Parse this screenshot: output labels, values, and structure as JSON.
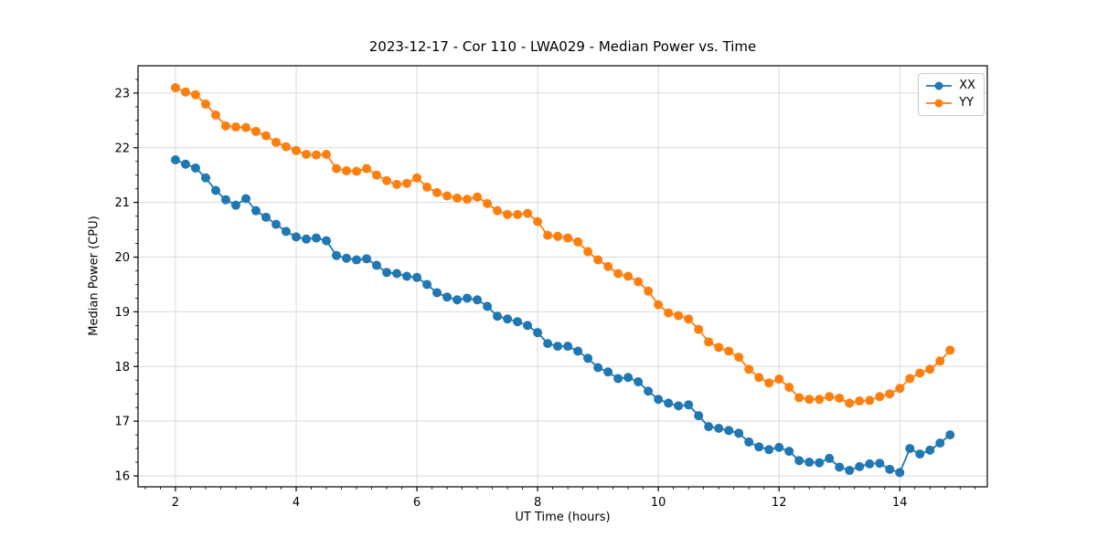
{
  "figure": {
    "title": "2023-12-17 - Cor 110 - LWA029 - Median Power vs. Time",
    "xlabel": "UT Time (hours)",
    "ylabel": "Median Power (CPU)"
  },
  "chart_data": {
    "type": "line",
    "title": "2023-12-17 - Cor 110 - LWA029 - Median Power vs. Time",
    "xlabel": "UT Time (hours)",
    "ylabel": "Median Power (CPU)",
    "xlim": [
      1.38,
      15.45
    ],
    "ylim": [
      15.8,
      23.5
    ],
    "x_ticks": [
      2,
      4,
      6,
      8,
      10,
      12,
      14
    ],
    "y_ticks": [
      16,
      17,
      18,
      19,
      20,
      21,
      22,
      23
    ],
    "x_minor_step": 0.25,
    "y_minor_step": 0.25,
    "grid": true,
    "grid_color": "#d9d9d9",
    "spine_color": "#000000",
    "legend_position": "upper right",
    "marker": "circle",
    "x": [
      2.0,
      2.167,
      2.333,
      2.5,
      2.667,
      2.833,
      3.0,
      3.167,
      3.333,
      3.5,
      3.667,
      3.833,
      4.0,
      4.167,
      4.333,
      4.5,
      4.667,
      4.833,
      5.0,
      5.167,
      5.333,
      5.5,
      5.667,
      5.833,
      6.0,
      6.167,
      6.333,
      6.5,
      6.667,
      6.833,
      7.0,
      7.167,
      7.333,
      7.5,
      7.667,
      7.833,
      8.0,
      8.167,
      8.333,
      8.5,
      8.667,
      8.833,
      9.0,
      9.167,
      9.333,
      9.5,
      9.667,
      9.833,
      10.0,
      10.167,
      10.333,
      10.5,
      10.667,
      10.833,
      11.0,
      11.167,
      11.333,
      11.5,
      11.667,
      11.833,
      12.0,
      12.167,
      12.333,
      12.5,
      12.667,
      12.833,
      13.0,
      13.167,
      13.333,
      13.5,
      13.667,
      13.833,
      14.0,
      14.167,
      14.333,
      14.5,
      14.667,
      14.833
    ],
    "series": [
      {
        "name": "XX",
        "color": "#1f77b4",
        "values": [
          21.78,
          21.7,
          21.63,
          21.45,
          21.22,
          21.05,
          20.95,
          21.07,
          20.85,
          20.73,
          20.6,
          20.47,
          20.37,
          20.33,
          20.35,
          20.3,
          20.03,
          19.98,
          19.95,
          19.97,
          19.85,
          19.72,
          19.7,
          19.65,
          19.63,
          19.5,
          19.35,
          19.27,
          19.22,
          19.25,
          19.22,
          19.1,
          18.92,
          18.87,
          18.82,
          18.75,
          18.62,
          18.42,
          18.37,
          18.37,
          18.28,
          18.15,
          17.98,
          17.9,
          17.78,
          17.8,
          17.72,
          17.55,
          17.4,
          17.33,
          17.28,
          17.3,
          17.1,
          16.9,
          16.87,
          16.83,
          16.78,
          16.62,
          16.53,
          16.48,
          16.52,
          16.45,
          16.28,
          16.25,
          16.24,
          16.32,
          16.16,
          16.1,
          16.17,
          16.22,
          16.23,
          16.12,
          16.06,
          16.5,
          16.4,
          16.47,
          16.6,
          16.75
        ]
      },
      {
        "name": "YY",
        "color": "#ff7f0e",
        "values": [
          23.1,
          23.02,
          22.97,
          22.8,
          22.6,
          22.4,
          22.38,
          22.37,
          22.3,
          22.22,
          22.1,
          22.02,
          21.95,
          21.88,
          21.87,
          21.88,
          21.62,
          21.58,
          21.57,
          21.62,
          21.5,
          21.4,
          21.33,
          21.35,
          21.45,
          21.28,
          21.18,
          21.12,
          21.08,
          21.06,
          21.1,
          20.98,
          20.85,
          20.78,
          20.78,
          20.8,
          20.65,
          20.4,
          20.38,
          20.35,
          20.28,
          20.1,
          19.95,
          19.83,
          19.7,
          19.65,
          19.55,
          19.38,
          19.13,
          18.98,
          18.93,
          18.87,
          18.68,
          18.45,
          18.35,
          18.28,
          18.17,
          17.95,
          17.8,
          17.7,
          17.77,
          17.62,
          17.43,
          17.4,
          17.4,
          17.45,
          17.42,
          17.33,
          17.37,
          17.38,
          17.45,
          17.5,
          17.6,
          17.78,
          17.88,
          17.95,
          18.1,
          18.3
        ]
      }
    ]
  }
}
